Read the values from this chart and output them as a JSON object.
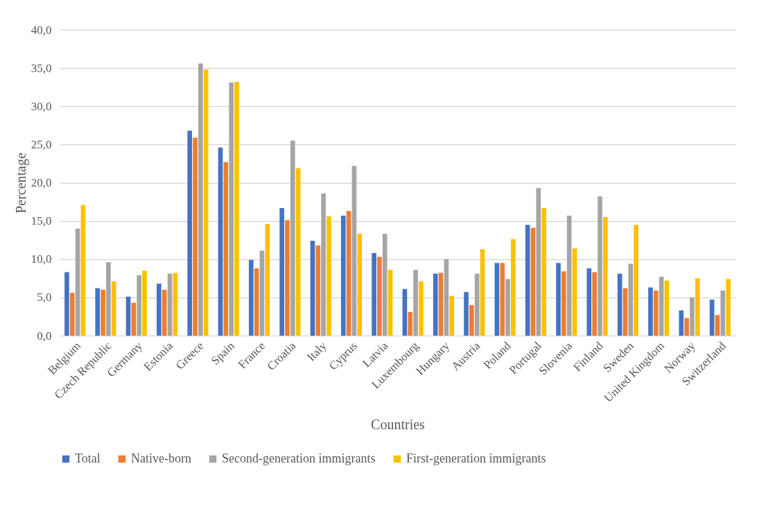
{
  "chart_data": {
    "type": "bar",
    "xlabel": "Countries",
    "ylabel": "Percentage",
    "categories": [
      "Belgium",
      "Czech Republic",
      "Germany",
      "Estonia",
      "Greece",
      "Spain",
      "France",
      "Croatia",
      "Italy",
      "Cyprus",
      "Latvia",
      "Luxembourg",
      "Hungary",
      "Austria",
      "Poland",
      "Portugal",
      "Slovenia",
      "Finland",
      "Sweden",
      "United Kingdom",
      "Norway",
      "Switzerland"
    ],
    "series": [
      {
        "name": "Total",
        "color": "#4472c4",
        "values": [
          8.3,
          6.2,
          5.1,
          6.8,
          26.8,
          24.6,
          9.9,
          16.7,
          12.4,
          15.7,
          10.8,
          6.1,
          8.1,
          5.7,
          9.5,
          14.5,
          9.5,
          8.8,
          8.1,
          6.3,
          3.3,
          4.7
        ]
      },
      {
        "name": "Native-born",
        "color": "#ed7d31",
        "values": [
          5.6,
          6.0,
          4.3,
          6.0,
          25.9,
          22.7,
          8.8,
          15.1,
          11.8,
          16.3,
          10.3,
          3.1,
          8.2,
          4.0,
          9.5,
          14.1,
          8.4,
          8.3,
          6.2,
          5.9,
          2.3,
          2.7
        ]
      },
      {
        "name": "Second-generation immigrants",
        "color": "#a5a5a5",
        "values": [
          14.0,
          9.6,
          7.9,
          8.1,
          35.6,
          33.1,
          11.1,
          25.5,
          18.6,
          22.2,
          13.3,
          8.6,
          10.0,
          8.1,
          7.4,
          19.3,
          15.7,
          18.2,
          9.4,
          7.7,
          5.0,
          5.9
        ]
      },
      {
        "name": "First-generation immigrants",
        "color": "#ffc000",
        "values": [
          17.1,
          7.1,
          8.5,
          8.2,
          34.8,
          33.2,
          14.6,
          21.9,
          15.6,
          13.3,
          8.6,
          7.1,
          5.2,
          11.3,
          12.6,
          16.7,
          11.4,
          15.5,
          14.5,
          7.2,
          7.5,
          7.4
        ]
      }
    ],
    "ylim": [
      0,
      40
    ],
    "yticks": [
      {
        "value": 0,
        "label": "0,0"
      },
      {
        "value": 5,
        "label": "5,0"
      },
      {
        "value": 10,
        "label": "10,0"
      },
      {
        "value": 15,
        "label": "15,0"
      },
      {
        "value": 20,
        "label": "20,0"
      },
      {
        "value": 25,
        "label": "25,0"
      },
      {
        "value": 30,
        "label": "30,0"
      },
      {
        "value": 35,
        "label": "35,0"
      },
      {
        "value": 40,
        "label": "40,0"
      }
    ],
    "grid": "y",
    "legend": "bottom"
  }
}
